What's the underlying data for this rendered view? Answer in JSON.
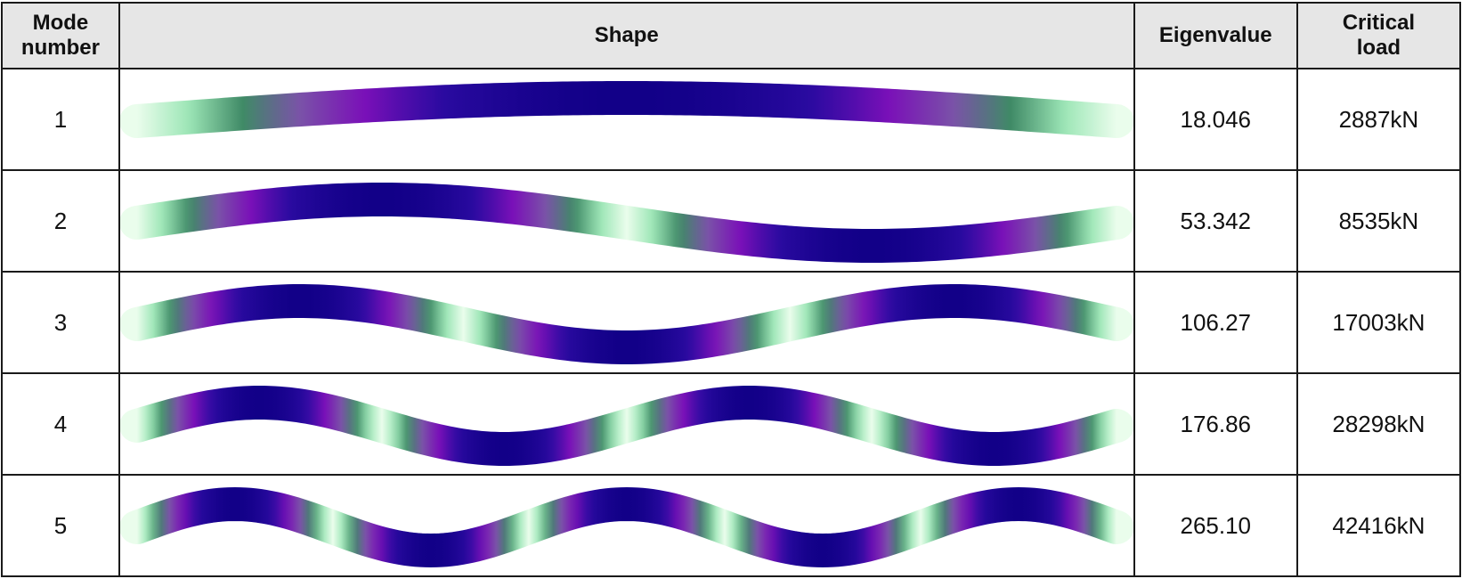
{
  "table": {
    "headers": {
      "mode": "Mode number",
      "shape": "Shape",
      "eigenvalue": "Eigenvalue",
      "critical_load": "Critical load"
    },
    "rows": [
      {
        "mode": "1",
        "eigenvalue": "18.046",
        "critical_load": "2887kN",
        "phase": 0.05
      },
      {
        "mode": "2",
        "eigenvalue": "53.342",
        "critical_load": "8535kN",
        "phase": 0.1
      },
      {
        "mode": "3",
        "eigenvalue": "106.27",
        "critical_load": "17003kN",
        "phase": 0.15
      },
      {
        "mode": "4",
        "eigenvalue": "176.86",
        "critical_load": "28298kN",
        "phase": 0.2
      },
      {
        "mode": "5",
        "eigenvalue": "265.10",
        "critical_load": "42416kN",
        "phase": 0.25
      }
    ]
  },
  "colors": {
    "header_bg": "#e6e6e6",
    "border": "#1a1a1a",
    "gradient": [
      "#eafdec",
      "#9ce6b6",
      "#3f8a66",
      "#7a52a8",
      "#7a10b8",
      "#2a0aa0",
      "#120088"
    ]
  }
}
